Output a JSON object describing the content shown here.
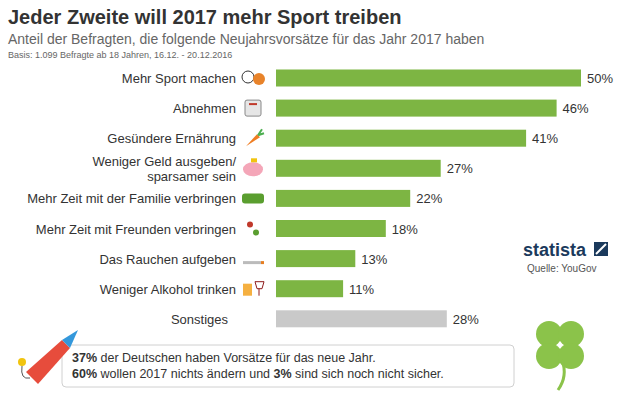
{
  "chart_data": {
    "type": "bar",
    "orientation": "horizontal",
    "title": "Jeder Zweite will 2017 mehr Sport treiben",
    "subtitle": "Anteil der Befragten, die folgende Neujahrsvorsätze für das Jahr 2017 haben",
    "basis": "Basis: 1.099 Befragte ab 18 Jahren, 16.12. - 20.12.2016",
    "brand": "statista",
    "source": "Quelle: YouGov",
    "categories": [
      "Mehr Sport machen",
      "Abnehmen",
      "Gesündere Ernährung",
      "Weniger Geld ausgeben/\nsparsamer sein",
      "Mehr Zeit mit der Familie verbringen",
      "Mehr Zeit mit Freunden verbringen",
      "Das Rauchen aufgeben",
      "Weniger Alkohol trinken",
      "Sonstiges"
    ],
    "values": [
      50,
      46,
      41,
      27,
      22,
      18,
      13,
      11,
      28
    ],
    "value_labels": [
      "50%",
      "46%",
      "41%",
      "27%",
      "22%",
      "18%",
      "13%",
      "11%",
      "28%"
    ],
    "colors": [
      "#7db543",
      "#7db543",
      "#7db543",
      "#7db543",
      "#7db543",
      "#7db543",
      "#7db543",
      "#7db543",
      "#c9c9c9"
    ],
    "xlim": [
      0,
      50
    ],
    "data_labels": true,
    "tick_labels": "y",
    "grid": false,
    "footer": [
      [
        "37%",
        " der Deutschen haben Vorsätze für das neue Jahr."
      ],
      [
        "60%",
        " wollen 2017 nichts ändern und ",
        "3%",
        " sind sich noch nicht sicher."
      ]
    ]
  }
}
